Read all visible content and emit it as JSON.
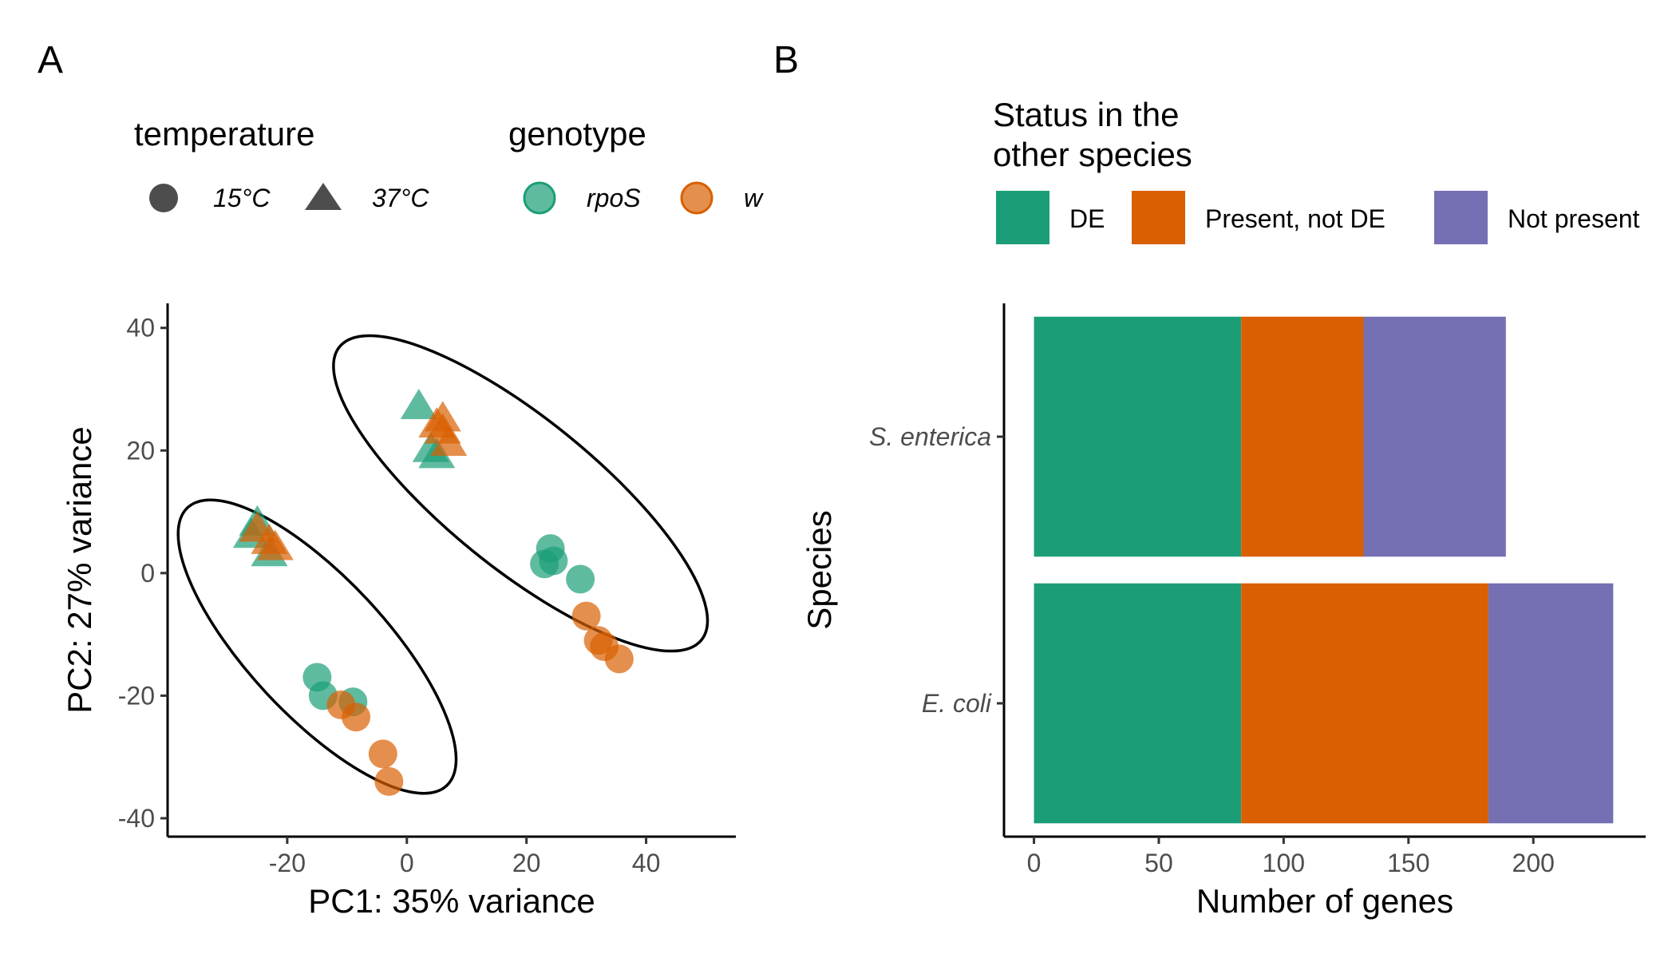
{
  "chart_data": [
    {
      "panel": "A",
      "type": "scatter",
      "xlabel": "PC1: 35% variance",
      "ylabel": "PC2: 27% variance",
      "xlim": [
        -40,
        55
      ],
      "ylim": [
        -43,
        44
      ],
      "x_ticks": [
        -20,
        0,
        20,
        40
      ],
      "y_ticks": [
        -40,
        -20,
        0,
        20,
        40
      ],
      "grid": false,
      "legend": {
        "placement": "top",
        "temperature": {
          "title": "temperature",
          "labels": [
            "15°C",
            "37°C"
          ]
        },
        "genotype": {
          "title": "genotype",
          "labels": [
            "rpoS",
            "wt"
          ],
          "visible_text": [
            "rpoS",
            "w"
          ]
        }
      },
      "colors": {
        "rpoS": "#1b9e77",
        "wt": "#d95f02"
      },
      "points": [
        {
          "x": 2,
          "y": 27,
          "temperature": "37°C",
          "genotype": "rpoS"
        },
        {
          "x": 4,
          "y": 20,
          "temperature": "37°C",
          "genotype": "rpoS"
        },
        {
          "x": 5,
          "y": 19,
          "temperature": "37°C",
          "genotype": "rpoS"
        },
        {
          "x": 5,
          "y": 24,
          "temperature": "37°C",
          "genotype": "wt"
        },
        {
          "x": 6,
          "y": 25,
          "temperature": "37°C",
          "genotype": "wt"
        },
        {
          "x": 7,
          "y": 21,
          "temperature": "37°C",
          "genotype": "wt"
        },
        {
          "x": 6,
          "y": 23,
          "temperature": "37°C",
          "genotype": "wt"
        },
        {
          "x": -25,
          "y": 8,
          "temperature": "37°C",
          "genotype": "rpoS"
        },
        {
          "x": -26,
          "y": 6,
          "temperature": "37°C",
          "genotype": "rpoS"
        },
        {
          "x": -23,
          "y": 3,
          "temperature": "37°C",
          "genotype": "rpoS"
        },
        {
          "x": -25,
          "y": 7,
          "temperature": "37°C",
          "genotype": "wt"
        },
        {
          "x": -23,
          "y": 5,
          "temperature": "37°C",
          "genotype": "wt"
        },
        {
          "x": -22,
          "y": 4,
          "temperature": "37°C",
          "genotype": "wt"
        },
        {
          "x": 24,
          "y": 4,
          "temperature": "15°C",
          "genotype": "rpoS"
        },
        {
          "x": 23,
          "y": 1.5,
          "temperature": "15°C",
          "genotype": "rpoS"
        },
        {
          "x": 24.5,
          "y": 2,
          "temperature": "15°C",
          "genotype": "rpoS"
        },
        {
          "x": 29,
          "y": -1,
          "temperature": "15°C",
          "genotype": "rpoS"
        },
        {
          "x": 30,
          "y": -7,
          "temperature": "15°C",
          "genotype": "wt"
        },
        {
          "x": 32,
          "y": -11,
          "temperature": "15°C",
          "genotype": "wt"
        },
        {
          "x": 33,
          "y": -12,
          "temperature": "15°C",
          "genotype": "wt"
        },
        {
          "x": 35.5,
          "y": -14,
          "temperature": "15°C",
          "genotype": "wt"
        },
        {
          "x": -15,
          "y": -17,
          "temperature": "15°C",
          "genotype": "rpoS"
        },
        {
          "x": -14,
          "y": -20,
          "temperature": "15°C",
          "genotype": "rpoS"
        },
        {
          "x": -9,
          "y": -21,
          "temperature": "15°C",
          "genotype": "rpoS"
        },
        {
          "x": -11,
          "y": -21.5,
          "temperature": "15°C",
          "genotype": "wt"
        },
        {
          "x": -8.5,
          "y": -23.5,
          "temperature": "15°C",
          "genotype": "wt"
        },
        {
          "x": -4,
          "y": -29.5,
          "temperature": "15°C",
          "genotype": "wt"
        },
        {
          "x": -3,
          "y": -34,
          "temperature": "15°C",
          "genotype": "wt"
        }
      ],
      "annotations": [
        {
          "type": "ellipse",
          "cx": -15,
          "cy": -12,
          "rx": 11.5,
          "ry": 31,
          "rotate_deg": -43
        },
        {
          "type": "ellipse",
          "cx": 19,
          "cy": 13,
          "rx": 12.5,
          "ry": 38,
          "rotate_deg": -51
        }
      ]
    },
    {
      "panel": "B",
      "type": "bar",
      "orientation": "horizontal",
      "stacked": true,
      "xlabel": "Number of genes",
      "ylabel": "Species",
      "xlim": [
        -12,
        245
      ],
      "x_ticks": [
        0,
        50,
        100,
        150,
        200
      ],
      "categories": [
        "S. enterica",
        "E. coli"
      ],
      "legend_title": "Status in the other species",
      "legend_placement": "top",
      "series": [
        {
          "name": "DE",
          "color": "#1b9e77",
          "values": [
            83,
            83
          ]
        },
        {
          "name": "Present, not DE",
          "color": "#d95f02",
          "values": [
            49,
            99
          ]
        },
        {
          "name": "Not present",
          "color": "#7570b3",
          "values": [
            57,
            50
          ]
        }
      ],
      "grid": false
    }
  ]
}
